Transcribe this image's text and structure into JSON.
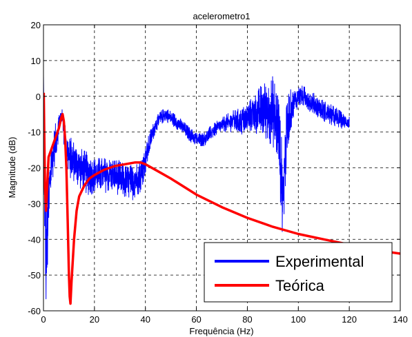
{
  "chart_data": {
    "type": "line",
    "title": "acelerometro1",
    "xlabel": "Frequência (Hz)",
    "ylabel": "Magnitude (dB)",
    "xlim": [
      0,
      140
    ],
    "ylim": [
      -60,
      20
    ],
    "xticks": [
      0,
      20,
      40,
      60,
      80,
      100,
      120,
      140
    ],
    "yticks": [
      -60,
      -50,
      -40,
      -30,
      -20,
      -10,
      0,
      10,
      20
    ],
    "grid": true,
    "legend_position": "bottom-right",
    "series": [
      {
        "name": "Experimental",
        "color": "#0000ff",
        "style": "noisy",
        "x": [
          0,
          0.5,
          1,
          1.5,
          2,
          3,
          4,
          5,
          6,
          7,
          7.5,
          8,
          9,
          10,
          12,
          14,
          16,
          18,
          20,
          22,
          25,
          28,
          30,
          32,
          35,
          38,
          40,
          42,
          44,
          46,
          48,
          50,
          52,
          55,
          58,
          60,
          63,
          66,
          70,
          74,
          78,
          82,
          86,
          90,
          92,
          93,
          94,
          95,
          96,
          98,
          100,
          102,
          104,
          106,
          108,
          110,
          112,
          115,
          118,
          120
        ],
        "y": [
          6,
          -35,
          -45,
          -40,
          -30,
          -20,
          -15,
          -12,
          -8,
          -5,
          -6,
          -10,
          -14,
          -17,
          -18,
          -20,
          -21,
          -22,
          -22,
          -22,
          -22,
          -22,
          -23,
          -24,
          -24,
          -22,
          -18,
          -12,
          -8,
          -6,
          -5,
          -6,
          -7,
          -9,
          -11,
          -12,
          -12,
          -10,
          -8,
          -7,
          -7,
          -5,
          -4,
          -4,
          -8,
          -18,
          -30,
          -15,
          -6,
          -2,
          0,
          0,
          -1,
          -2,
          -3,
          -4,
          -5,
          -6,
          -7,
          -7
        ],
        "noise": [
          0,
          15,
          15,
          14,
          10,
          7,
          6,
          5,
          4,
          2,
          2,
          4,
          5,
          6,
          6,
          6,
          6,
          6,
          5,
          5,
          5,
          5,
          5,
          5,
          5,
          5,
          4,
          3,
          2,
          2,
          2,
          2,
          2,
          2,
          2,
          2,
          2,
          2,
          2,
          3,
          4,
          5,
          8,
          10,
          12,
          12,
          12,
          10,
          8,
          4,
          3,
          3,
          3,
          3,
          3,
          3,
          3,
          3,
          2,
          2
        ]
      },
      {
        "name": "Teórica",
        "color": "#ff0000",
        "style": "line",
        "x": [
          0.1,
          0.3,
          0.6,
          1,
          2,
          3,
          4,
          5,
          6,
          7,
          7.5,
          8,
          8.5,
          9,
          9.5,
          10,
          10.3,
          10.6,
          11,
          12,
          13,
          14,
          16,
          18,
          20,
          24,
          28,
          32,
          36,
          38,
          40,
          45,
          50,
          60,
          70,
          80,
          90,
          100,
          110,
          120,
          130,
          140
        ],
        "y": [
          1,
          -10,
          -25,
          -32,
          -17,
          -15,
          -13,
          -11,
          -9,
          -6,
          -5,
          -7,
          -12,
          -20,
          -35,
          -50,
          -56,
          -58,
          -52,
          -40,
          -32,
          -28,
          -25,
          -23,
          -22,
          -20.5,
          -19.5,
          -19,
          -18.5,
          -18.5,
          -19,
          -21,
          -23,
          -27.5,
          -31,
          -34,
          -36.5,
          -38.5,
          -40,
          -41.5,
          -43,
          -44
        ]
      }
    ]
  }
}
